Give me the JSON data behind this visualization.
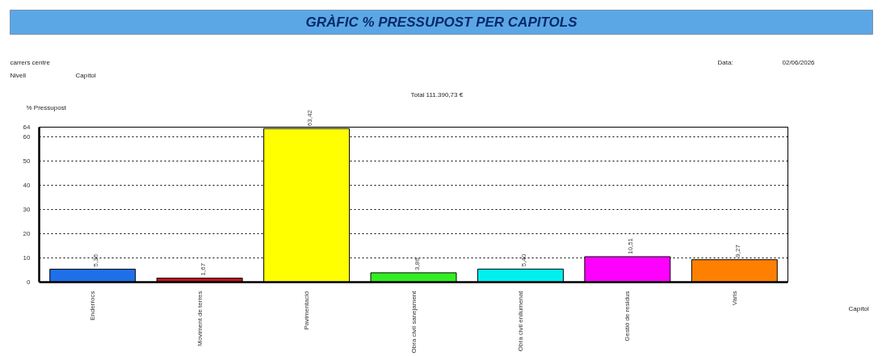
{
  "chart_data": {
    "type": "bar",
    "title": "GRÀFIC % PRESSUPOST PER CAPITOLS",
    "subtitle": "Total 111.390,73 €",
    "ylabel": "% Pressupost",
    "annotations": [
      "carrers centre",
      "Nivell",
      "Capítol",
      "Data:",
      "02/06/2026",
      "Capítol"
    ],
    "categories": [
      "Enderrocs",
      "Moviment de terres",
      "Pavimentació",
      "Obra civil sanejament",
      "Obra civil enllumenat",
      "Gestió de residus",
      "Varis"
    ],
    "values": [
      5.36,
      1.67,
      63.42,
      3.86,
      5.4,
      10.51,
      9.27
    ],
    "colors": [
      "#1f6fe8",
      "#c0101a",
      "#ffff00",
      "#33ee22",
      "#00f0f0",
      "#ff00ff",
      "#ff8000"
    ],
    "value_labels": [
      "5,36",
      "1,67",
      "63,42",
      "3,86",
      "5,40",
      "10,51",
      "9,27"
    ],
    "ylim": [
      0,
      64
    ],
    "yticks": [
      0,
      10,
      20,
      30,
      40,
      50,
      60,
      64
    ],
    "grid": "y"
  }
}
